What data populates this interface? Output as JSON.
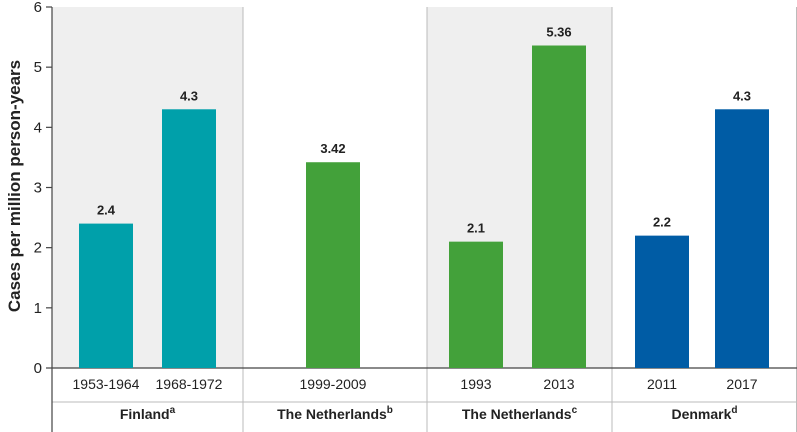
{
  "chart_data": {
    "type": "bar",
    "ylabel": "Cases per million person-years",
    "ylim": [
      0,
      6
    ],
    "yticks": [
      0,
      1,
      2,
      3,
      4,
      5,
      6
    ],
    "grid": false,
    "groups": [
      {
        "label": "Finland",
        "superscript": "a",
        "shaded": true,
        "bars": [
          {
            "category": "1953-1964",
            "value": 2.4,
            "value_label": "2.4",
            "color": "#00a0aa"
          },
          {
            "category": "1968-1972",
            "value": 4.3,
            "value_label": "4.3",
            "color": "#00a0aa"
          }
        ]
      },
      {
        "label": "The Netherlands",
        "superscript": "b",
        "shaded": false,
        "bars": [
          {
            "category": "1999-2009",
            "value": 3.42,
            "value_label": "3.42",
            "color": "#43a13a"
          }
        ]
      },
      {
        "label": "The Netherlands",
        "superscript": "c",
        "shaded": true,
        "bars": [
          {
            "category": "1993",
            "value": 2.1,
            "value_label": "2.1",
            "color": "#43a13a"
          },
          {
            "category": "2013",
            "value": 5.36,
            "value_label": "5.36",
            "color": "#43a13a"
          }
        ]
      },
      {
        "label": "Denmark",
        "superscript": "d",
        "shaded": false,
        "bars": [
          {
            "category": "2011",
            "value": 2.2,
            "value_label": "2.2",
            "color": "#005ca5"
          },
          {
            "category": "2017",
            "value": 4.3,
            "value_label": "4.3",
            "color": "#005ca5"
          }
        ]
      }
    ],
    "colors": {
      "shade": "#efefef",
      "axis": "#444444",
      "divider": "#bbbbbb"
    }
  }
}
